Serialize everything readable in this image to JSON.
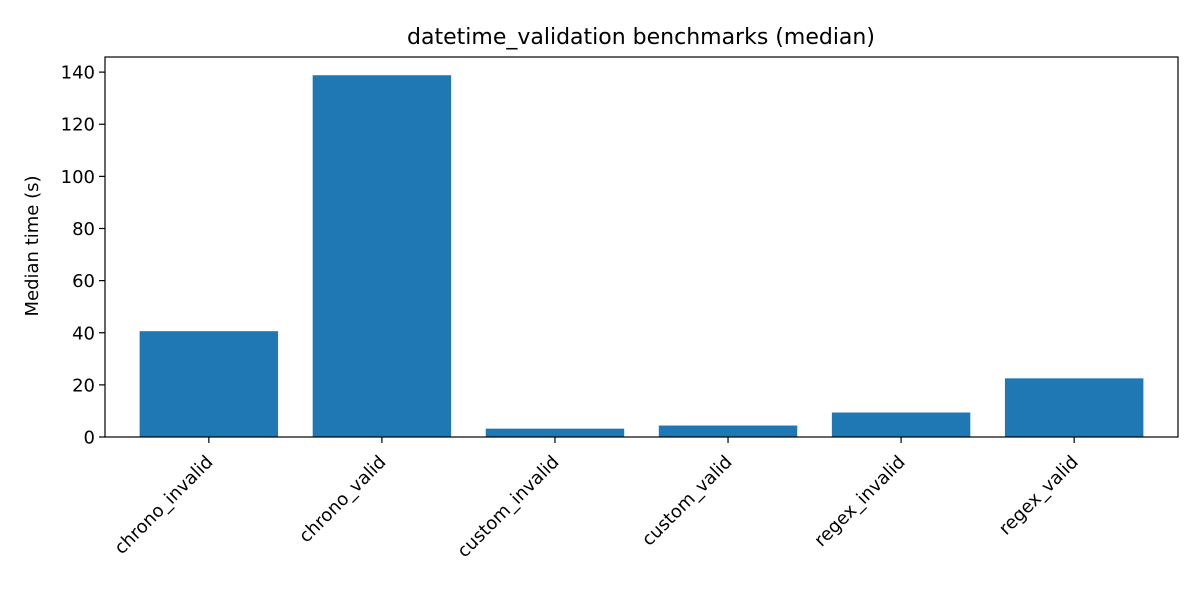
{
  "chart_data": {
    "type": "bar",
    "title": "datetime_validation benchmarks (median)",
    "xlabel": "",
    "ylabel": "Median time (s)",
    "categories": [
      "chrono_invalid",
      "chrono_valid",
      "custom_invalid",
      "custom_valid",
      "regex_invalid",
      "regex_valid"
    ],
    "values": [
      40.6,
      138.8,
      3.2,
      4.4,
      9.4,
      22.5
    ],
    "ylim": [
      0,
      145.8
    ],
    "yticks": [
      0,
      20,
      40,
      60,
      80,
      100,
      120,
      140
    ],
    "grid": false,
    "bar_color": "#1f77b4"
  }
}
